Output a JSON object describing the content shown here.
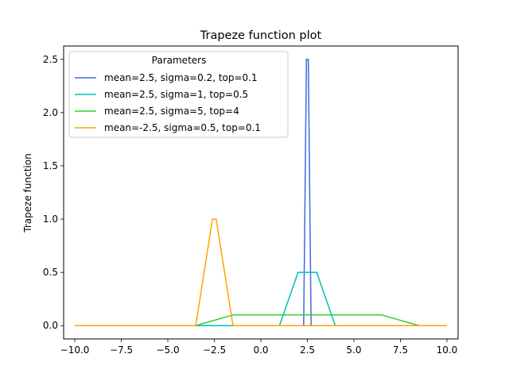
{
  "chart_data": {
    "type": "line",
    "title": "Trapeze function plot",
    "xlabel": "",
    "ylabel": "Trapeze function",
    "xlim": [
      -10.6,
      10.6
    ],
    "ylim": [
      -0.125,
      2.625
    ],
    "xticks": [
      -10.0,
      -7.5,
      -5.0,
      -2.5,
      0.0,
      2.5,
      5.0,
      7.5,
      10.0
    ],
    "xtick_labels": [
      "−10.0",
      "−7.5",
      "−5.0",
      "−2.5",
      "0.0",
      "2.5",
      "5.0",
      "7.5",
      "10.0"
    ],
    "yticks": [
      0.0,
      0.5,
      1.0,
      1.5,
      2.0,
      2.5
    ],
    "ytick_labels": [
      "0.0",
      "0.5",
      "1.0",
      "1.5",
      "2.0",
      "2.5"
    ],
    "grid": false,
    "legend": {
      "title": "Parameters",
      "placement": "top-left"
    },
    "series": [
      {
        "name": "mean=2.5, sigma=0.2, top=0.1",
        "color": "#4169e1",
        "x": [
          -10,
          2.1,
          2.3,
          2.45,
          2.55,
          2.7,
          2.9,
          10
        ],
        "y": [
          0,
          0,
          0,
          2.5,
          2.5,
          0,
          0,
          0
        ]
      },
      {
        "name": "mean=2.5, sigma=1, top=0.5",
        "color": "#00bfbf",
        "x": [
          -10,
          1.0,
          2.0,
          3.0,
          4.0,
          10
        ],
        "y": [
          0,
          0,
          0.5,
          0.5,
          0,
          0
        ]
      },
      {
        "name": "mean=2.5, sigma=5, top=4",
        "color": "#32cd32",
        "x": [
          -10,
          -3.5,
          -1.5,
          6.5,
          8.5,
          10
        ],
        "y": [
          0,
          0,
          0.1,
          0.1,
          0,
          0
        ]
      },
      {
        "name": "mean=-2.5, sigma=0.5, top=0.1",
        "color": "#ffa500",
        "x": [
          -10,
          -3.5,
          -2.6,
          -2.4,
          -1.5,
          10
        ],
        "y": [
          0,
          0,
          1.0,
          1.0,
          0,
          0
        ]
      }
    ]
  }
}
